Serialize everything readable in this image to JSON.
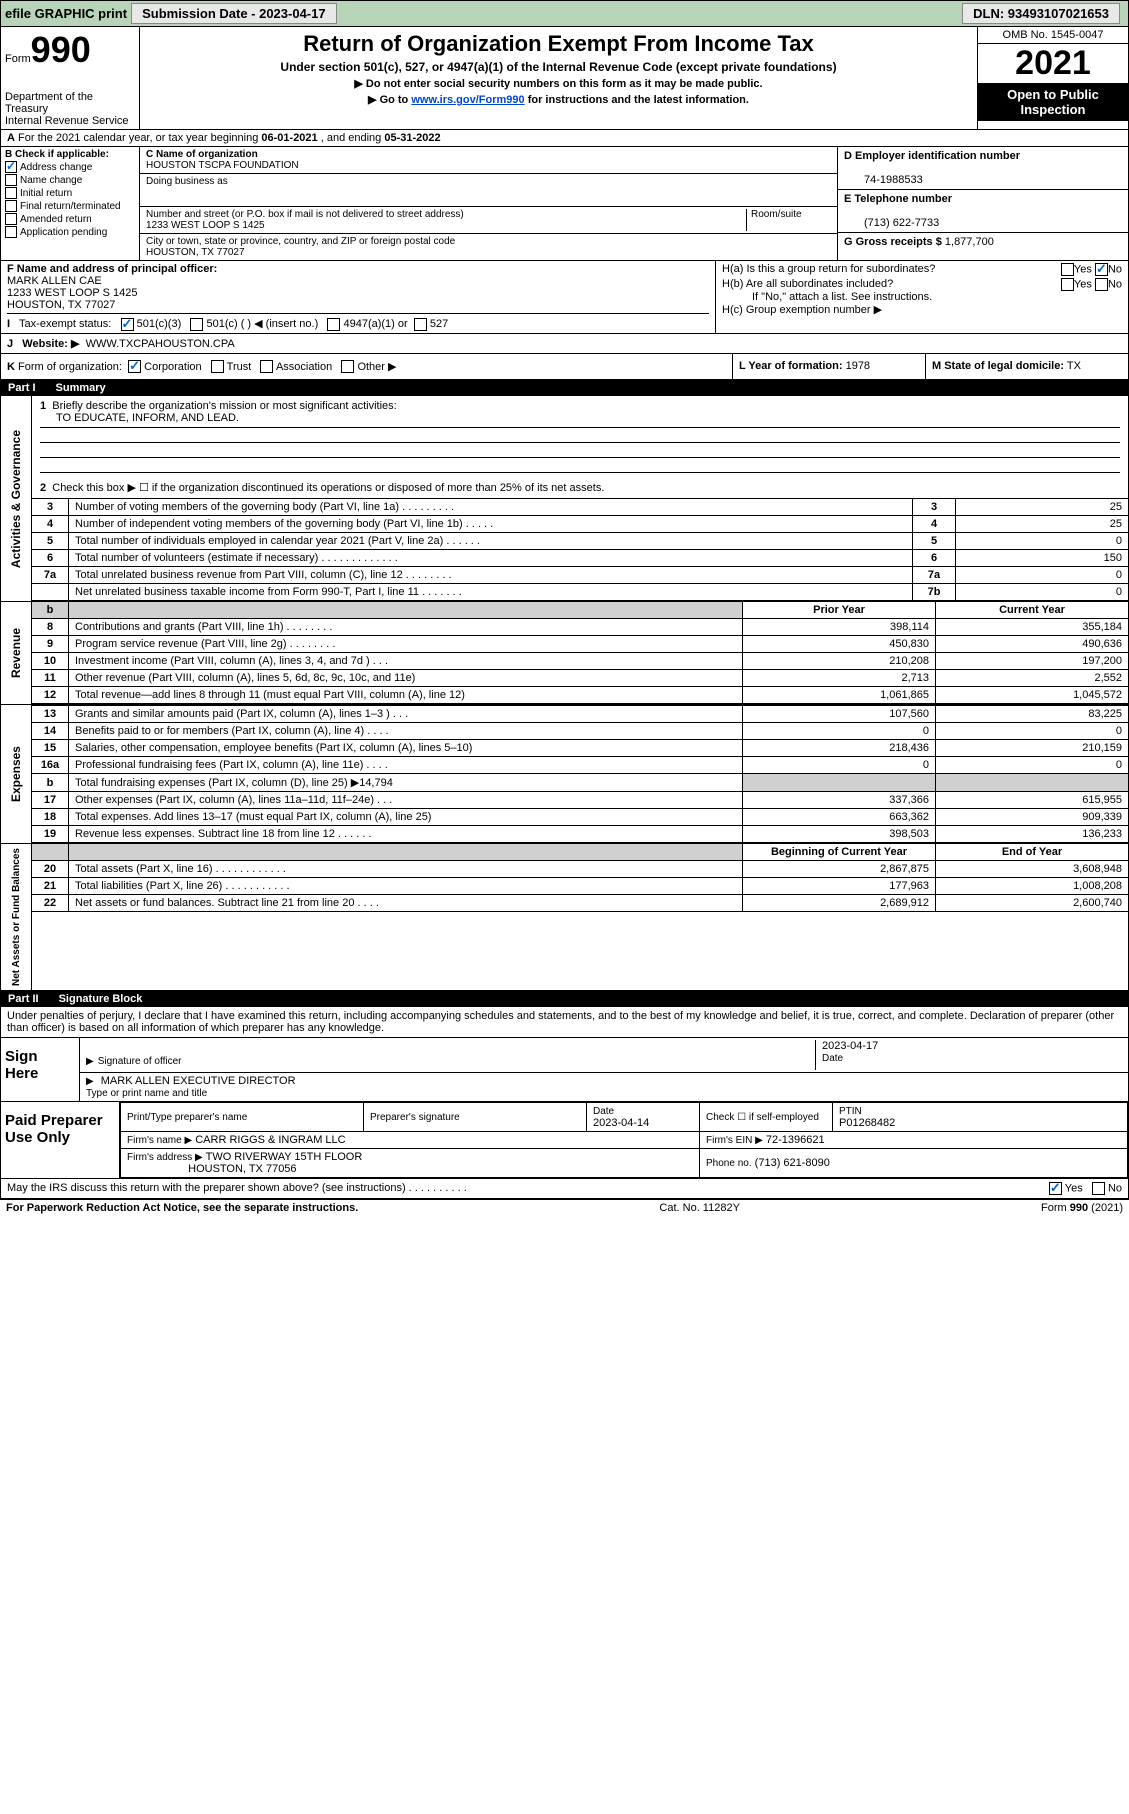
{
  "topbar": {
    "efile": "efile GRAPHIC print",
    "submission_label": "Submission Date - 2023-04-17",
    "dln": "DLN: 93493107021653"
  },
  "header": {
    "form_prefix": "Form",
    "form_no": "990",
    "dept": "Department of the Treasury",
    "irs": "Internal Revenue Service",
    "title": "Return of Organization Exempt From Income Tax",
    "sub1": "Under section 501(c), 527, or 4947(a)(1) of the Internal Revenue Code (except private foundations)",
    "sub2": "▶ Do not enter social security numbers on this form as it may be made public.",
    "sub3_pre": "▶ Go to ",
    "sub3_link": "www.irs.gov/Form990",
    "sub3_post": " for instructions and the latest information.",
    "omb": "OMB No. 1545-0047",
    "year": "2021",
    "open1": "Open to Public",
    "open2": "Inspection"
  },
  "lineA": {
    "label_a": "A",
    "text": " For the 2021 calendar year, or tax year beginning ",
    "begin": "06-01-2021",
    "mid": " , and ending ",
    "end": "05-31-2022"
  },
  "sectionB": {
    "label": "B Check if applicable:",
    "items": [
      {
        "label": "Address change",
        "checked": true
      },
      {
        "label": "Name change",
        "checked": false
      },
      {
        "label": "Initial return",
        "checked": false
      },
      {
        "label": "Final return/terminated",
        "checked": false
      },
      {
        "label": "Amended return",
        "checked": false
      },
      {
        "label": "Application pending",
        "checked": false
      }
    ]
  },
  "sectionC": {
    "name_label": "C Name of organization",
    "name": "HOUSTON TSCPA FOUNDATION",
    "dba_label": "Doing business as",
    "dba": "",
    "addr_label": "Number and street (or P.O. box if mail is not delivered to street address)",
    "room_label": "Room/suite",
    "addr": "1233 WEST LOOP S 1425",
    "city_label": "City or town, state or province, country, and ZIP or foreign postal code",
    "city": "HOUSTON, TX  77027"
  },
  "sectionD": {
    "label": "D Employer identification number",
    "value": "74-1988533"
  },
  "sectionE": {
    "label": "E Telephone number",
    "value": "(713) 622-7733"
  },
  "sectionG": {
    "label": "G Gross receipts $",
    "value": "1,877,700"
  },
  "sectionF": {
    "label": "F Name and address of principal officer:",
    "name": "MARK ALLEN CAE",
    "addr1": "1233 WEST LOOP S 1425",
    "addr2": "HOUSTON, TX  77027"
  },
  "sectionH": {
    "ha": "H(a)  Is this a group return for subordinates?",
    "ha_yes": "Yes",
    "ha_no": "No",
    "hb": "H(b)  Are all subordinates included?",
    "hb_yes": "Yes",
    "hb_no": "No",
    "hb_note": "If \"No,\" attach a list. See instructions.",
    "hc": "H(c)  Group exemption number ▶"
  },
  "lineI": {
    "label": "I",
    "text": "Tax-exempt status:",
    "opt1": "501(c)(3)",
    "opt2": "501(c) (  ) ◀ (insert no.)",
    "opt3": "4947(a)(1) or",
    "opt4": "527"
  },
  "lineJ": {
    "label": "J",
    "text": "Website: ▶",
    "value": "WWW.TXCPAHOUSTON.CPA"
  },
  "lineK": {
    "label": "K",
    "text": "Form of organization:",
    "opts": [
      "Corporation",
      "Trust",
      "Association",
      "Other ▶"
    ]
  },
  "lineL": {
    "label": "L Year of formation:",
    "value": "1978"
  },
  "lineM": {
    "label": "M State of legal domicile:",
    "value": "TX"
  },
  "part1": {
    "label": "Part I",
    "title": "Summary"
  },
  "summary": {
    "q1_label": "1",
    "q1_text": "Briefly describe the organization's mission or most significant activities:",
    "q1_answer": "TO EDUCATE, INFORM, AND LEAD.",
    "q2_label": "2",
    "q2_text": "Check this box ▶ ☐  if the organization discontinued its operations or disposed of more than 25% of its net assets.",
    "rows_act": [
      {
        "n": "3",
        "desc": "Number of voting members of the governing body (Part VI, line 1a)    .    .    .    .    .    .    .    .    .",
        "box": "3",
        "val": "25"
      },
      {
        "n": "4",
        "desc": "Number of independent voting members of the governing body (Part VI, line 1b)    .    .    .    .    .",
        "box": "4",
        "val": "25"
      },
      {
        "n": "5",
        "desc": "Total number of individuals employed in calendar year 2021 (Part V, line 2a)    .    .    .    .    .    .",
        "box": "5",
        "val": "0"
      },
      {
        "n": "6",
        "desc": "Total number of volunteers (estimate if necessary)    .    .    .    .    .    .    .    .    .    .    .    .    .",
        "box": "6",
        "val": "150"
      },
      {
        "n": "7a",
        "desc": "Total unrelated business revenue from Part VIII, column (C), line 12    .    .    .    .    .    .    .    .",
        "box": "7a",
        "val": "0"
      },
      {
        "n": "",
        "desc": "Net unrelated business taxable income from Form 990-T, Part I, line 11    .    .    .    .    .    .    .",
        "box": "7b",
        "val": "0"
      }
    ],
    "col_prior": "Prior Year",
    "col_current": "Current Year",
    "rows_rev": [
      {
        "n": "8",
        "desc": "Contributions and grants (Part VIII, line 1h)    .    .    .    .    .    .    .    .",
        "p": "398,114",
        "c": "355,184"
      },
      {
        "n": "9",
        "desc": "Program service revenue (Part VIII, line 2g)    .    .    .    .    .    .    .    .",
        "p": "450,830",
        "c": "490,636"
      },
      {
        "n": "10",
        "desc": "Investment income (Part VIII, column (A), lines 3, 4, and 7d )    .    .    .",
        "p": "210,208",
        "c": "197,200"
      },
      {
        "n": "11",
        "desc": "Other revenue (Part VIII, column (A), lines 5, 6d, 8c, 9c, 10c, and 11e)",
        "p": "2,713",
        "c": "2,552"
      },
      {
        "n": "12",
        "desc": "Total revenue—add lines 8 through 11 (must equal Part VIII, column (A), line 12)",
        "p": "1,061,865",
        "c": "1,045,572"
      }
    ],
    "rows_exp": [
      {
        "n": "13",
        "desc": "Grants and similar amounts paid (Part IX, column (A), lines 1–3 )    .    .    .",
        "p": "107,560",
        "c": "83,225"
      },
      {
        "n": "14",
        "desc": "Benefits paid to or for members (Part IX, column (A), line 4)    .    .    .    .",
        "p": "0",
        "c": "0"
      },
      {
        "n": "15",
        "desc": "Salaries, other compensation, employee benefits (Part IX, column (A), lines 5–10)",
        "p": "218,436",
        "c": "210,159"
      },
      {
        "n": "16a",
        "desc": "Professional fundraising fees (Part IX, column (A), line 11e)    .    .    .    .",
        "p": "0",
        "c": "0"
      },
      {
        "n": "b",
        "desc": "Total fundraising expenses (Part IX, column (D), line 25) ▶14,794",
        "p": "",
        "c": "",
        "shade": true
      },
      {
        "n": "17",
        "desc": "Other expenses (Part IX, column (A), lines 11a–11d, 11f–24e)    .    .    .",
        "p": "337,366",
        "c": "615,955"
      },
      {
        "n": "18",
        "desc": "Total expenses. Add lines 13–17 (must equal Part IX, column (A), line 25)",
        "p": "663,362",
        "c": "909,339"
      },
      {
        "n": "19",
        "desc": "Revenue less expenses. Subtract line 18 from line 12    .    .    .    .    .    .",
        "p": "398,503",
        "c": "136,233"
      }
    ],
    "col_begin": "Beginning of Current Year",
    "col_end": "End of Year",
    "rows_net": [
      {
        "n": "20",
        "desc": "Total assets (Part X, line 16)    .    .    .    .    .    .    .    .    .    .    .    .",
        "p": "2,867,875",
        "c": "3,608,948"
      },
      {
        "n": "21",
        "desc": "Total liabilities (Part X, line 26)    .    .    .    .    .    .    .    .    .    .    .",
        "p": "177,963",
        "c": "1,008,208"
      },
      {
        "n": "22",
        "desc": "Net assets or fund balances. Subtract line 21 from line 20    .    .    .    .",
        "p": "2,689,912",
        "c": "2,600,740"
      }
    ],
    "side_act": "Activities & Governance",
    "side_rev": "Revenue",
    "side_exp": "Expenses",
    "side_net": "Net Assets or Fund Balances"
  },
  "part2": {
    "label": "Part II",
    "title": "Signature Block"
  },
  "penalties": "Under penalties of perjury, I declare that I have examined this return, including accompanying schedules and statements, and to the best of my knowledge and belief, it is true, correct, and complete. Declaration of preparer (other than officer) is based on all information of which preparer has any knowledge.",
  "sign": {
    "here": "Sign Here",
    "sig_officer": "Signature of officer",
    "date_label": "Date",
    "date": "2023-04-17",
    "name": "MARK ALLEN  EXECUTIVE DIRECTOR",
    "name_label": "Type or print name and title"
  },
  "paid": {
    "label": "Paid Preparer Use Only",
    "h1": "Print/Type preparer's name",
    "h2": "Preparer's signature",
    "h3": "Date",
    "h3v": "2023-04-14",
    "h4": "Check ☐  if self-employed",
    "h5": "PTIN",
    "h5v": "P01268482",
    "firm_name_label": "Firm's name   ▶",
    "firm_name": "CARR RIGGS & INGRAM LLC",
    "firm_ein_label": "Firm's EIN ▶",
    "firm_ein": "72-1396621",
    "firm_addr_label": "Firm's address ▶",
    "firm_addr1": "TWO RIVERWAY 15TH FLOOR",
    "firm_addr2": "HOUSTON, TX  77056",
    "phone_label": "Phone no.",
    "phone": "(713) 621-8090"
  },
  "discuss": {
    "text": "May the IRS discuss this return with the preparer shown above? (see instructions)    .    .    .    .    .    .    .    .    .    .",
    "yes": "Yes",
    "no": "No"
  },
  "footer": {
    "left": "For Paperwork Reduction Act Notice, see the separate instructions.",
    "mid": "Cat. No. 11282Y",
    "right": "Form 990 (2021)"
  },
  "colors": {
    "topbar_bg": "#b8d4b8",
    "link": "#0044cc",
    "check": "#0066cc"
  }
}
